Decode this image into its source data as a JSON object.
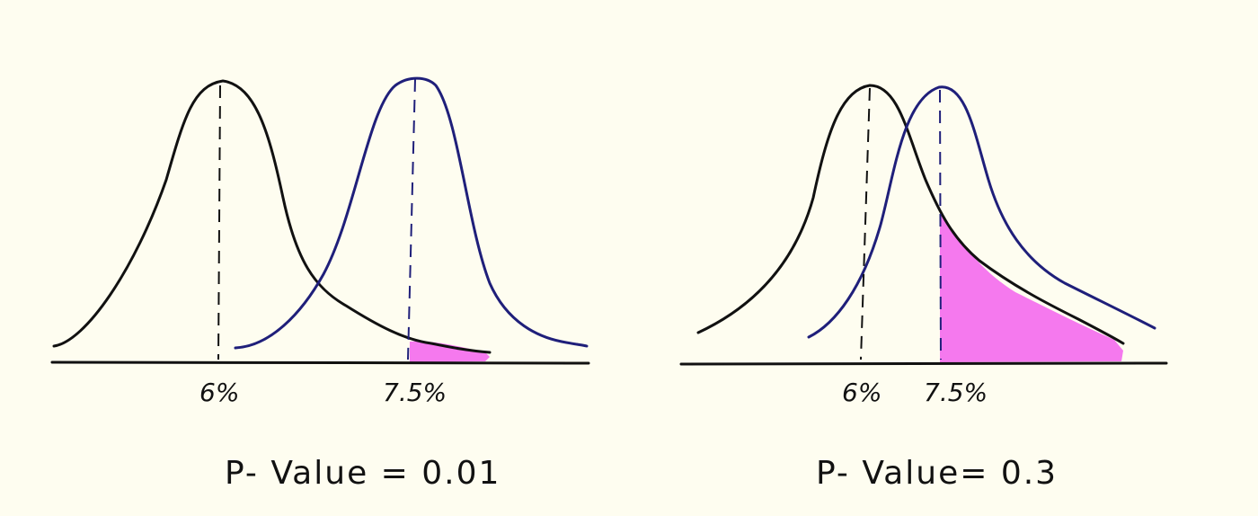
{
  "colors": {
    "background": "#fefdf0",
    "null_curve": "#111111",
    "alt_curve": "#1f1f7a",
    "shaded_area": "#f579ee",
    "axis": "#111111"
  },
  "panels": [
    {
      "tick_labels": {
        "null_mean": "6%",
        "alt_mean": "7.5%"
      },
      "caption": "P- Value = 0.01"
    },
    {
      "tick_labels": {
        "null_mean": "6%",
        "alt_mean": "7.5%"
      },
      "caption": "P- Value= 0.3"
    }
  ]
}
